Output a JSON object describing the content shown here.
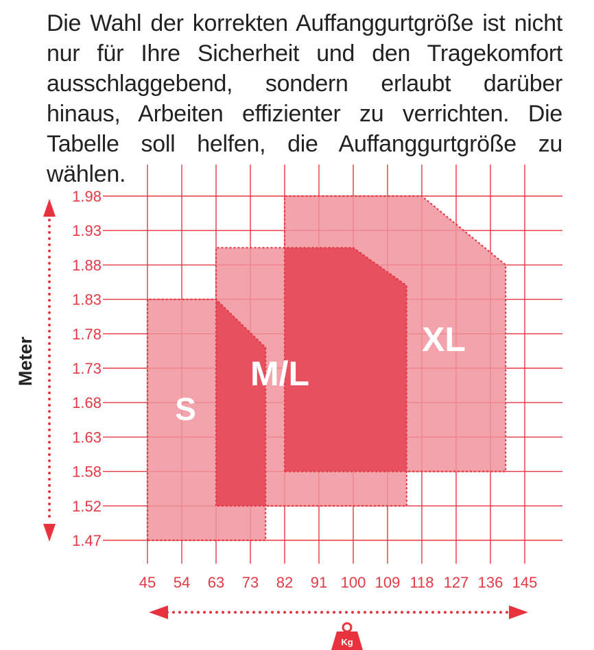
{
  "intro_text": "Die Wahl der korrekten Auffanggurtgröße ist nicht nur für Ihre Sicherheit und den Tragekomfort ausschlaggebend, sondern erlaubt darüber hinaus, Arbeiten effizienter zu verrichten. Die Tabelle soll helfen, die Auffanggurtgröße zu wählen.",
  "colors": {
    "grid": "#e8333f",
    "tick_text": "#e23a44",
    "region_light": "#f0939c",
    "region_dark": "#e6505f",
    "region_border": "#e23a44",
    "label_text": "#ffffff",
    "arrow": "#e8333f"
  },
  "chart_data": {
    "type": "area",
    "ylabel": "Meter",
    "x_unit_badge": "Kg",
    "x_ticks": [
      "45",
      "54",
      "63",
      "73",
      "82",
      "91",
      "100",
      "109",
      "118",
      "127",
      "136",
      "145"
    ],
    "y_ticks": [
      "1.98",
      "1.93",
      "1.88",
      "1.83",
      "1.78",
      "1.73",
      "1.68",
      "1.63",
      "1.58",
      "1.52",
      "1.47"
    ],
    "grid": true,
    "sizes": [
      {
        "name": "S",
        "polygon_kg_m": [
          [
            45,
            1.47
          ],
          [
            45,
            1.83
          ],
          [
            63,
            1.83
          ],
          [
            77,
            1.76
          ],
          [
            77,
            1.47
          ]
        ]
      },
      {
        "name": "M/L",
        "polygon_kg_m": [
          [
            63,
            1.52
          ],
          [
            63,
            1.905
          ],
          [
            100,
            1.905
          ],
          [
            114,
            1.85
          ],
          [
            114,
            1.52
          ]
        ]
      },
      {
        "name": "XL",
        "polygon_kg_m": [
          [
            82,
            1.58
          ],
          [
            82,
            1.98
          ],
          [
            118,
            1.98
          ],
          [
            140,
            1.88
          ],
          [
            140,
            1.58
          ]
        ]
      }
    ]
  }
}
